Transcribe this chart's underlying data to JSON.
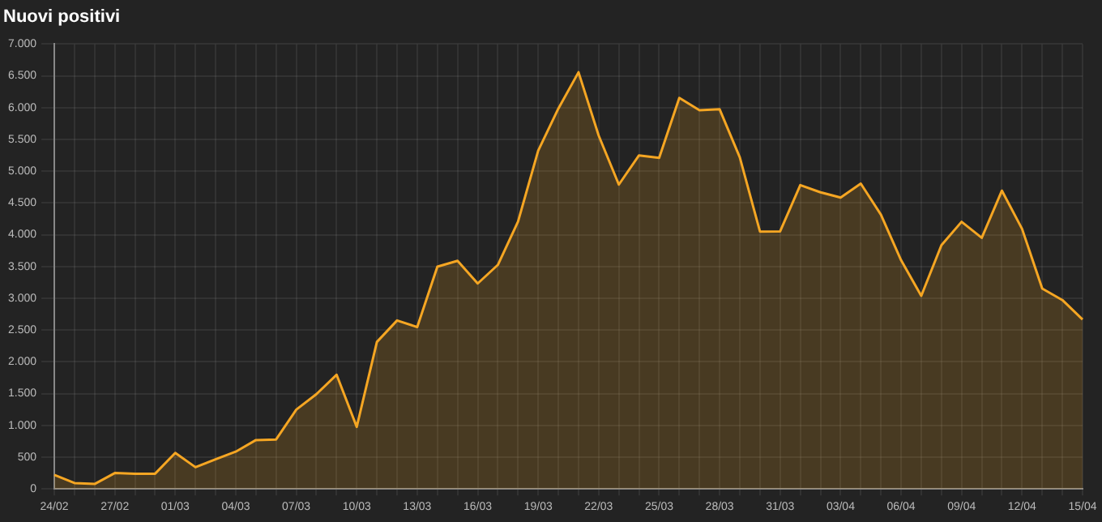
{
  "chart_data": {
    "type": "area",
    "title": "Nuovi positivi",
    "categories": [
      "24/02",
      null,
      null,
      "27/02",
      null,
      null,
      "01/03",
      null,
      null,
      "04/03",
      null,
      null,
      "07/03",
      null,
      null,
      "10/03",
      null,
      null,
      "13/03",
      null,
      null,
      "16/03",
      null,
      null,
      "19/03",
      null,
      null,
      "22/03",
      null,
      null,
      "25/03",
      null,
      null,
      "28/03",
      null,
      null,
      "31/03",
      null,
      null,
      "03/04",
      null,
      null,
      "06/04",
      null,
      null,
      "09/04",
      null,
      null,
      "12/04",
      null,
      null,
      "15/04"
    ],
    "series": [
      {
        "color": "#f5a623",
        "values": [
          221,
          93,
          78,
          250,
          238,
          240,
          566,
          342,
          466,
          587,
          769,
          778,
          1247,
          1492,
          1797,
          977,
          2313,
          2651,
          2547,
          3497,
          3590,
          3233,
          3526,
          4207,
          5322,
          5986,
          6557,
          5560,
          4789,
          5249,
          5210,
          6153,
          5959,
          5974,
          5217,
          4050,
          4053,
          4782,
          4668,
          4585,
          4805,
          4316,
          3599,
          3039,
          3836,
          4204,
          3951,
          4694,
          4092,
          3153,
          2972,
          2667
        ]
      }
    ],
    "ylim": [
      0,
      7000
    ],
    "yticks": [
      0,
      {
        "value": 500,
        "label": "500"
      },
      {
        "value": 1000,
        "label": "1.000"
      },
      {
        "value": 1500,
        "label": "1.500"
      },
      {
        "value": 2000,
        "label": "2.000"
      },
      {
        "value": 2500,
        "label": "2.500"
      },
      {
        "value": 3000,
        "label": "3.000"
      },
      {
        "value": 3500,
        "label": "3.500"
      },
      {
        "value": 4000,
        "label": "4.000"
      },
      {
        "value": 4500,
        "label": "4.500"
      },
      {
        "value": 5000,
        "label": "5.000"
      },
      {
        "value": 5500,
        "label": "5.500"
      },
      {
        "value": 6000,
        "label": "6.000"
      },
      {
        "value": 6500,
        "label": "6.500"
      },
      {
        "value": 7000,
        "label": "7.000"
      }
    ],
    "grid": true,
    "legend": false,
    "marker": "none"
  }
}
